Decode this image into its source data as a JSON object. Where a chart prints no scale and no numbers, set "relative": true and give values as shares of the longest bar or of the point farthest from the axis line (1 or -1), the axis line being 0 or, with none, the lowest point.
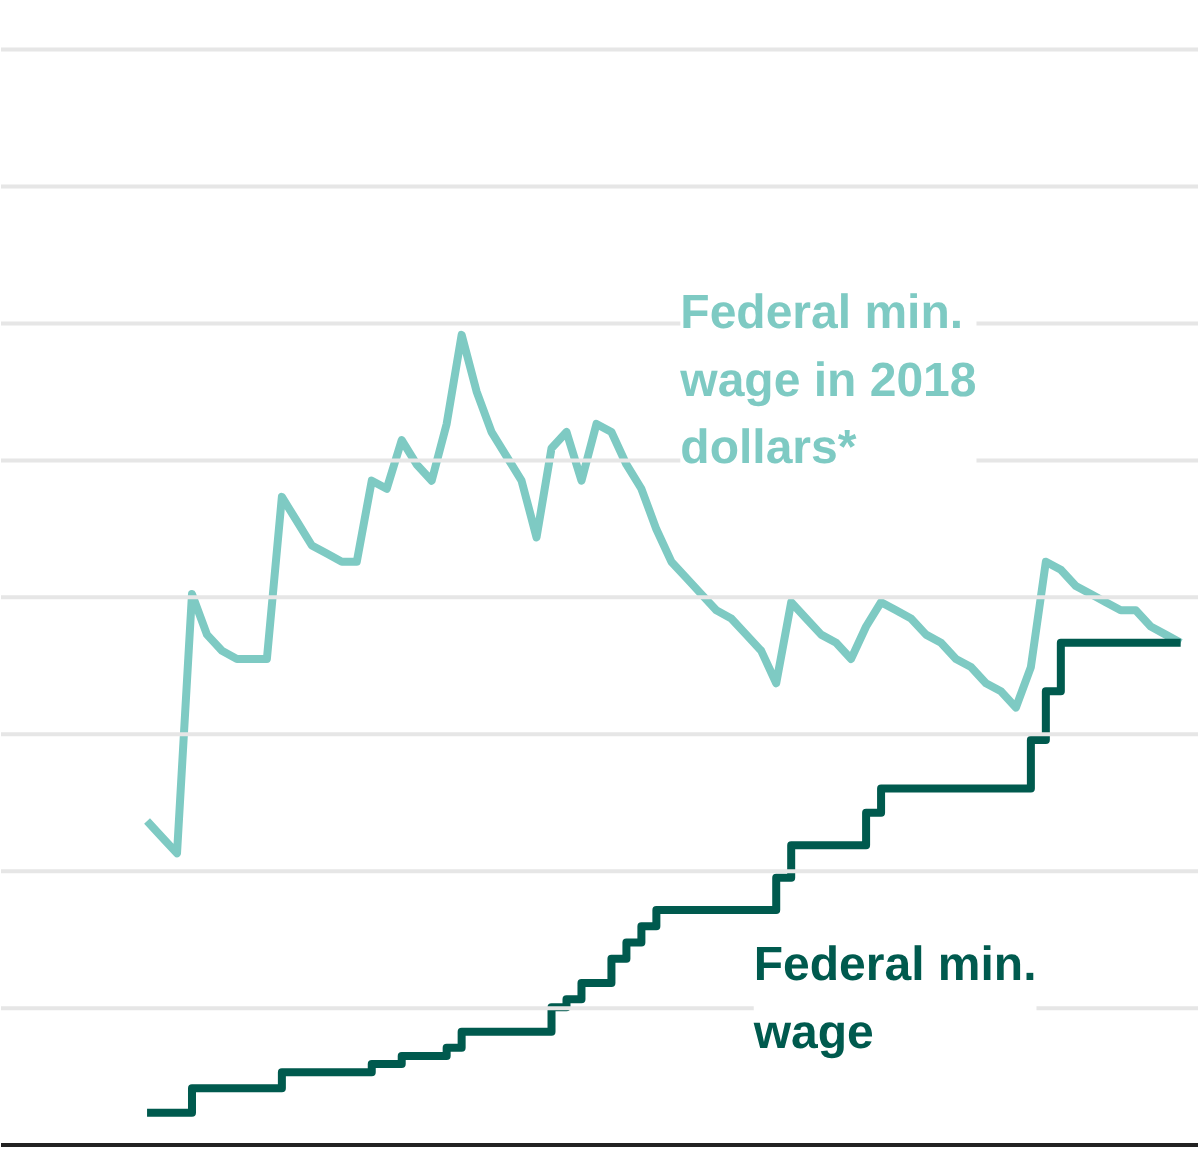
{
  "chart_data": {
    "type": "line",
    "relative": true,
    "grid": "y",
    "legend": false,
    "marker": "none",
    "categories": [
      null,
      null,
      null,
      null,
      null,
      null,
      null,
      null,
      null,
      null,
      null,
      null,
      null,
      null,
      null,
      null,
      null,
      null,
      null,
      null,
      null,
      null,
      null,
      null,
      null,
      null,
      null,
      null,
      null,
      null,
      null,
      null,
      null,
      null,
      null,
      null,
      null,
      null,
      null,
      null,
      null,
      null,
      null,
      null,
      null,
      null,
      null,
      null,
      null,
      null,
      null,
      null,
      null,
      null,
      null,
      null,
      null,
      null,
      null,
      null,
      null,
      null,
      null,
      null,
      null,
      null,
      null,
      null,
      null,
      null
    ],
    "series": [
      {
        "name": "Federal min. wage in 2018 dollars*",
        "color": "#7ecac3",
        "values": [
          0.4,
          0.38,
          0.36,
          0.68,
          0.63,
          0.61,
          0.6,
          0.6,
          0.6,
          0.8,
          0.77,
          0.74,
          0.73,
          0.72,
          0.72,
          0.82,
          0.81,
          0.87,
          0.84,
          0.82,
          0.89,
          1.0,
          0.93,
          0.88,
          0.85,
          0.82,
          0.75,
          0.86,
          0.88,
          0.82,
          0.89,
          0.88,
          0.84,
          0.81,
          0.76,
          0.72,
          0.7,
          0.68,
          0.66,
          0.65,
          0.63,
          0.61,
          0.57,
          0.67,
          0.65,
          0.63,
          0.62,
          0.6,
          0.64,
          0.67,
          0.66,
          0.65,
          0.63,
          0.62,
          0.6,
          0.59,
          0.57,
          0.56,
          0.54,
          0.59,
          0.72,
          0.71,
          0.69,
          0.68,
          0.67,
          0.66,
          0.66,
          0.64,
          0.63,
          0.62
        ]
      },
      {
        "name": "Federal min. wage",
        "color": "#005a4e",
        "type": "step",
        "values": [
          0.04,
          0.04,
          0.04,
          0.07,
          0.07,
          0.07,
          0.07,
          0.07,
          0.07,
          0.09,
          0.09,
          0.09,
          0.09,
          0.09,
          0.09,
          0.1,
          0.1,
          0.11,
          0.11,
          0.11,
          0.12,
          0.14,
          0.14,
          0.14,
          0.14,
          0.14,
          0.14,
          0.17,
          0.18,
          0.2,
          0.2,
          0.23,
          0.25,
          0.27,
          0.29,
          0.29,
          0.29,
          0.29,
          0.29,
          0.29,
          0.29,
          0.29,
          0.33,
          0.37,
          0.37,
          0.37,
          0.37,
          0.37,
          0.41,
          0.44,
          0.44,
          0.44,
          0.44,
          0.44,
          0.44,
          0.44,
          0.44,
          0.44,
          0.44,
          0.5,
          0.56,
          0.62,
          0.62,
          0.62,
          0.62,
          0.62,
          0.62,
          0.62,
          0.62,
          0.62
        ]
      }
    ]
  }
}
